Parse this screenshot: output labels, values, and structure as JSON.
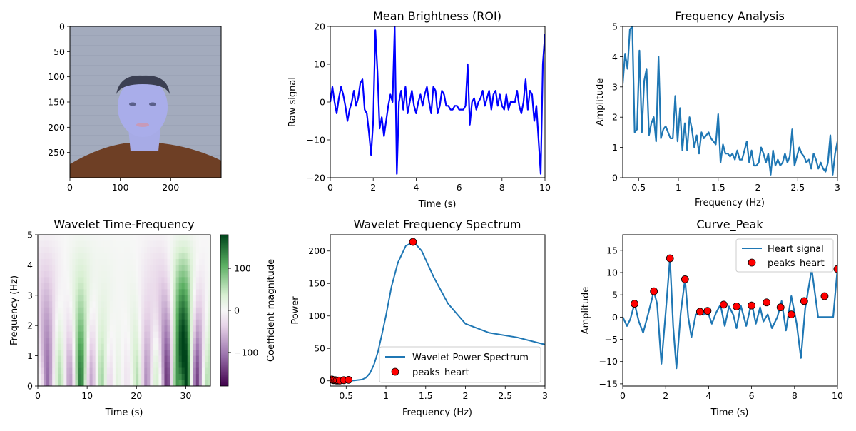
{
  "chart_data": [
    {
      "type": "image",
      "title": "",
      "xlabel": "",
      "ylabel": "",
      "xlim": [
        0,
        300
      ],
      "ylim": [
        300,
        0
      ],
      "x_ticks": [
        0,
        100,
        200
      ],
      "y_ticks": [
        0,
        50,
        100,
        150,
        200,
        250
      ],
      "image": "webcam-frame-face",
      "colors": {
        "background": "#a6aebf",
        "shirt": "#6b3e26",
        "face": "#a7abe6",
        "hair": "#3b3f52"
      }
    },
    {
      "type": "line",
      "title": "Mean Brightness (ROI)",
      "xlabel": "Time (s)",
      "ylabel": "Raw signal",
      "xlim": [
        0,
        10
      ],
      "ylim": [
        -20,
        20
      ],
      "x_ticks": [
        0,
        2,
        4,
        6,
        8,
        10
      ],
      "y_ticks": [
        -20,
        -10,
        0,
        10,
        20
      ],
      "color": "#0000ff",
      "x": [
        0,
        0.1,
        0.2,
        0.3,
        0.4,
        0.5,
        0.6,
        0.7,
        0.8,
        0.9,
        1.0,
        1.1,
        1.2,
        1.3,
        1.4,
        1.5,
        1.6,
        1.7,
        1.8,
        1.9,
        2.0,
        2.1,
        2.2,
        2.3,
        2.4,
        2.5,
        2.6,
        2.7,
        2.8,
        2.9,
        3.0,
        3.1,
        3.2,
        3.3,
        3.4,
        3.5,
        3.6,
        3.7,
        3.8,
        3.9,
        4.0,
        4.1,
        4.2,
        4.3,
        4.4,
        4.5,
        4.6,
        4.7,
        4.8,
        4.9,
        5.0,
        5.1,
        5.2,
        5.3,
        5.4,
        5.5,
        5.6,
        5.7,
        5.8,
        5.9,
        6.0,
        6.1,
        6.2,
        6.3,
        6.4,
        6.5,
        6.6,
        6.7,
        6.8,
        6.9,
        7.0,
        7.1,
        7.2,
        7.3,
        7.4,
        7.5,
        7.6,
        7.7,
        7.8,
        7.9,
        8.0,
        8.1,
        8.2,
        8.3,
        8.4,
        8.5,
        8.6,
        8.7,
        8.8,
        8.9,
        9.0,
        9.1,
        9.2,
        9.3,
        9.4,
        9.5,
        9.6,
        9.7,
        9.8,
        9.9,
        10.0
      ],
      "y": [
        0,
        4,
        0,
        -3,
        1,
        4,
        2,
        -1,
        -5,
        -2,
        0,
        3,
        -1,
        1,
        5,
        6,
        -2,
        -3,
        -8,
        -14,
        -5,
        19,
        8,
        -7,
        -4,
        -9,
        -5,
        -1,
        2,
        0,
        20,
        -19,
        0,
        3,
        -2,
        4,
        -3,
        0,
        3,
        -1,
        -3,
        0,
        2,
        -1,
        2,
        4,
        0,
        -3,
        4,
        3,
        -3,
        -1,
        3,
        2,
        -1,
        -1,
        -2,
        -2,
        -1,
        -1,
        -2,
        -2,
        -2,
        -1,
        10,
        -6,
        0,
        1,
        -2,
        0,
        1,
        3,
        -1,
        1,
        3,
        -2,
        2,
        3,
        -1,
        2,
        -1,
        -2,
        2,
        -2,
        0,
        0,
        0,
        3,
        -1,
        -3,
        0,
        6,
        -2,
        3,
        2,
        -5,
        -1,
        -10,
        -19,
        10,
        18
      ]
    },
    {
      "type": "line",
      "title": "Frequency Analysis",
      "xlabel": "Frequency (Hz)",
      "ylabel": "Amplitude",
      "xlim": [
        0.3,
        3.0
      ],
      "ylim": [
        0,
        5
      ],
      "x_ticks": [
        0.5,
        1.0,
        1.5,
        2.0,
        2.5,
        3.0
      ],
      "y_ticks": [
        0,
        1,
        2,
        3,
        4,
        5
      ],
      "color": "#1f77b4",
      "x": [
        0.3,
        0.33,
        0.36,
        0.39,
        0.42,
        0.45,
        0.48,
        0.51,
        0.54,
        0.57,
        0.6,
        0.63,
        0.66,
        0.69,
        0.72,
        0.75,
        0.78,
        0.81,
        0.84,
        0.87,
        0.9,
        0.93,
        0.96,
        0.99,
        1.02,
        1.05,
        1.08,
        1.11,
        1.14,
        1.17,
        1.2,
        1.23,
        1.26,
        1.29,
        1.32,
        1.35,
        1.38,
        1.41,
        1.44,
        1.47,
        1.5,
        1.53,
        1.56,
        1.59,
        1.62,
        1.65,
        1.68,
        1.71,
        1.74,
        1.77,
        1.8,
        1.83,
        1.86,
        1.89,
        1.92,
        1.95,
        1.98,
        2.01,
        2.04,
        2.07,
        2.1,
        2.13,
        2.16,
        2.19,
        2.22,
        2.25,
        2.28,
        2.31,
        2.34,
        2.37,
        2.4,
        2.43,
        2.46,
        2.49,
        2.52,
        2.55,
        2.58,
        2.61,
        2.64,
        2.67,
        2.7,
        2.73,
        2.76,
        2.79,
        2.82,
        2.85,
        2.88,
        2.91,
        2.94,
        2.97,
        3.0
      ],
      "y": [
        3.1,
        4.1,
        3.6,
        4.9,
        5.0,
        1.5,
        1.6,
        4.2,
        1.5,
        3.2,
        3.6,
        1.4,
        1.8,
        2.0,
        1.2,
        4.0,
        1.3,
        1.6,
        1.7,
        1.5,
        1.3,
        1.3,
        2.7,
        1.2,
        2.3,
        0.9,
        1.8,
        0.9,
        2.0,
        1.6,
        1.0,
        1.4,
        0.8,
        1.5,
        1.3,
        1.4,
        1.5,
        1.3,
        1.2,
        1.1,
        2.1,
        0.5,
        1.1,
        0.8,
        0.8,
        0.7,
        0.8,
        0.6,
        0.9,
        0.6,
        0.6,
        0.9,
        1.2,
        0.5,
        0.9,
        0.4,
        0.4,
        0.5,
        1.0,
        0.8,
        0.5,
        0.8,
        0.1,
        0.9,
        0.4,
        0.6,
        0.4,
        0.5,
        0.8,
        0.5,
        0.7,
        1.6,
        0.4,
        0.7,
        1.0,
        0.8,
        0.7,
        0.5,
        0.6,
        0.3,
        0.8,
        0.6,
        0.3,
        0.5,
        0.3,
        0.2,
        0.5,
        1.4,
        0.1,
        0.8,
        1.2
      ]
    },
    {
      "type": "heatmap",
      "title": "Wavelet Time-Frequency",
      "xlabel": "Time (s)",
      "ylabel": "Frequency (Hz)",
      "xlim": [
        0,
        35
      ],
      "ylim": [
        0,
        5
      ],
      "x_ticks": [
        0,
        10,
        20,
        30
      ],
      "y_ticks": [
        0,
        1,
        2,
        3,
        4,
        5
      ],
      "colormap": "PRGn",
      "colorbar_label": "Coefficient magnitude",
      "colorbar_ticks": [
        -100,
        0,
        100
      ],
      "colorbar_range": [
        -180,
        180
      ],
      "components": [
        {
          "t": 2.0,
          "amp": -110
        },
        {
          "t": 4.5,
          "amp": 60
        },
        {
          "t": 6.5,
          "amp": -80
        },
        {
          "t": 8.7,
          "amp": 150
        },
        {
          "t": 10.8,
          "amp": -70
        },
        {
          "t": 13.0,
          "amp": 70
        },
        {
          "t": 14.6,
          "amp": -40
        },
        {
          "t": 16.0,
          "amp": 30
        },
        {
          "t": 18.0,
          "amp": -20
        },
        {
          "t": 20.2,
          "amp": 60
        },
        {
          "t": 22.0,
          "amp": -90
        },
        {
          "t": 24.0,
          "amp": 40
        },
        {
          "t": 26.2,
          "amp": -150
        },
        {
          "t": 28.3,
          "amp": 120
        },
        {
          "t": 30.1,
          "amp": 180
        },
        {
          "t": 32.3,
          "amp": -140
        },
        {
          "t": 34.3,
          "amp": 60
        }
      ]
    },
    {
      "type": "line",
      "title": "Wavelet Frequency Spectrum",
      "xlabel": "Frequency (Hz)",
      "ylabel": "Power",
      "xlim": [
        0.3,
        3.0
      ],
      "ylim": [
        -8,
        225
      ],
      "x_ticks": [
        0.5,
        1.0,
        1.5,
        2.0,
        2.5,
        3.0
      ],
      "y_ticks": [
        0,
        50,
        100,
        150,
        200
      ],
      "legend_position": "lower right",
      "series": [
        {
          "name": "Wavelet Power Spectrum",
          "color": "#1f77b4",
          "x": [
            0.3,
            0.4,
            0.5,
            0.6,
            0.7,
            0.75,
            0.8,
            0.85,
            0.9,
            0.95,
            1.0,
            1.07,
            1.15,
            1.25,
            1.35,
            1.45,
            1.6,
            1.78,
            2.0,
            2.3,
            2.65,
            3.0
          ],
          "y": [
            0,
            0,
            0,
            0.5,
            2,
            5,
            12,
            25,
            45,
            72,
            100,
            145,
            182,
            208,
            214,
            200,
            160,
            119,
            88,
            74,
            67,
            56
          ]
        },
        {
          "name": "peaks_heart",
          "type": "scatter",
          "color": "#ff0000",
          "x": [
            0.32,
            0.34,
            0.36,
            0.38,
            0.4,
            0.42,
            0.47,
            0.53,
            1.34
          ],
          "y": [
            2,
            1,
            1,
            0.5,
            0.5,
            0.5,
            1,
            1.5,
            214
          ]
        }
      ]
    },
    {
      "type": "line",
      "title": "Curve_Peak",
      "xlabel": "Time (s)",
      "ylabel": "Amplitude",
      "xlim": [
        0,
        10
      ],
      "ylim": [
        -15.5,
        18.5
      ],
      "x_ticks": [
        0,
        2,
        4,
        6,
        8,
        10
      ],
      "y_ticks": [
        -15,
        -10,
        -5,
        0,
        5,
        10,
        15
      ],
      "legend_position": "upper right",
      "series": [
        {
          "name": "Heart signal",
          "color": "#1f77b4",
          "x": [
            0,
            0.2,
            0.35,
            0.55,
            0.75,
            0.95,
            1.2,
            1.45,
            1.6,
            1.8,
            2.0,
            2.2,
            2.35,
            2.5,
            2.7,
            2.9,
            3.05,
            3.2,
            3.4,
            3.6,
            3.75,
            3.95,
            4.15,
            4.35,
            4.55,
            4.75,
            4.95,
            5.15,
            5.3,
            5.5,
            5.75,
            6.0,
            6.2,
            6.4,
            6.55,
            6.75,
            6.95,
            7.2,
            7.4,
            7.6,
            7.85,
            8.1,
            8.3,
            8.5,
            8.8,
            9.1,
            9.4,
            9.65,
            9.8,
            10.0
          ],
          "y": [
            0,
            -2,
            -0.5,
            3,
            -1,
            -3.5,
            1,
            5.8,
            3,
            -10.5,
            1,
            13.2,
            -2,
            -11.5,
            1,
            8.5,
            0,
            -4.5,
            0.5,
            1.2,
            0.5,
            1.4,
            -1.5,
            1,
            2.8,
            -2,
            2.4,
            0.5,
            -2.5,
            2.6,
            -2,
            3.3,
            -1.5,
            2.2,
            -1,
            0.6,
            -2.5,
            0,
            3.6,
            -3,
            4.7,
            -1.5,
            -9.2,
            2,
            10.8,
            0,
            0,
            0,
            0,
            10.8
          ]
        },
        {
          "name": "peaks_heart",
          "type": "scatter",
          "color": "#ff0000",
          "x": [
            0.55,
            1.45,
            2.2,
            2.9,
            3.6,
            3.95,
            4.7,
            5.3,
            6.0,
            6.7,
            7.35,
            7.85,
            8.45,
            9.4,
            10.0
          ],
          "y": [
            3.0,
            5.8,
            13.2,
            8.5,
            1.2,
            1.4,
            2.8,
            2.4,
            2.6,
            3.3,
            2.2,
            0.6,
            3.6,
            4.7,
            10.8
          ]
        }
      ]
    }
  ]
}
